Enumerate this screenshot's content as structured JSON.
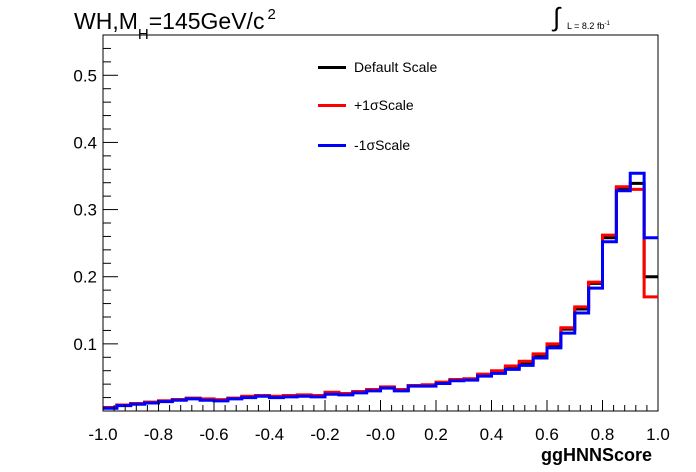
{
  "chart_data": {
    "type": "line",
    "title": {
      "main": "WH,M",
      "subscript": "H",
      "rest": "=145GeV/c",
      "superscript": "2"
    },
    "annotation": {
      "integral": "∫",
      "text": "L = 8.2 fb",
      "superscript": "-1"
    },
    "xlabel": "ggHNNScore",
    "ylabel": "",
    "xlim": [
      -1.0,
      1.0
    ],
    "ylim": [
      0.0,
      0.56
    ],
    "x_ticks": [
      "-1.0",
      "-0.8",
      "-0.6",
      "-0.4",
      "-0.2",
      "-0.0",
      "0.2",
      "0.4",
      "0.6",
      "0.8",
      "1.0"
    ],
    "y_ticks": [
      "0.1",
      "0.2",
      "0.3",
      "0.4",
      "0.5"
    ],
    "bin_edges": [
      -1.0,
      -0.95,
      -0.9,
      -0.85,
      -0.8,
      -0.75,
      -0.7,
      -0.65,
      -0.6,
      -0.55,
      -0.5,
      -0.45,
      -0.4,
      -0.35,
      -0.3,
      -0.25,
      -0.2,
      -0.15,
      -0.1,
      -0.05,
      0.0,
      0.05,
      0.1,
      0.15,
      0.2,
      0.25,
      0.3,
      0.35,
      0.4,
      0.45,
      0.5,
      0.55,
      0.6,
      0.65,
      0.7,
      0.75,
      0.8,
      0.85,
      0.9,
      0.95,
      1.0
    ],
    "series": [
      {
        "name": "Default Scale",
        "color": "#000000",
        "values": [
          0.005,
          0.009,
          0.011,
          0.013,
          0.015,
          0.017,
          0.019,
          0.017,
          0.016,
          0.019,
          0.021,
          0.023,
          0.021,
          0.022,
          0.023,
          0.022,
          0.027,
          0.025,
          0.028,
          0.031,
          0.035,
          0.031,
          0.038,
          0.038,
          0.042,
          0.046,
          0.047,
          0.054,
          0.058,
          0.065,
          0.072,
          0.083,
          0.098,
          0.122,
          0.152,
          0.19,
          0.258,
          0.332,
          0.339,
          0.2
        ]
      },
      {
        "name": "+1σScale",
        "color": "#ff0000",
        "values": [
          0.005,
          0.009,
          0.011,
          0.013,
          0.015,
          0.017,
          0.019,
          0.018,
          0.017,
          0.019,
          0.022,
          0.023,
          0.022,
          0.023,
          0.024,
          0.023,
          0.028,
          0.026,
          0.029,
          0.032,
          0.036,
          0.032,
          0.038,
          0.039,
          0.043,
          0.047,
          0.048,
          0.055,
          0.06,
          0.067,
          0.074,
          0.085,
          0.1,
          0.124,
          0.155,
          0.192,
          0.262,
          0.334,
          0.33,
          0.17
        ]
      },
      {
        "name": "-1σScale",
        "color": "#0000ff",
        "values": [
          0.004,
          0.008,
          0.01,
          0.012,
          0.014,
          0.016,
          0.018,
          0.016,
          0.015,
          0.018,
          0.02,
          0.022,
          0.02,
          0.021,
          0.022,
          0.021,
          0.025,
          0.024,
          0.027,
          0.03,
          0.034,
          0.03,
          0.037,
          0.037,
          0.041,
          0.045,
          0.046,
          0.052,
          0.056,
          0.062,
          0.068,
          0.079,
          0.094,
          0.116,
          0.146,
          0.183,
          0.252,
          0.328,
          0.354,
          0.258
        ]
      }
    ],
    "legend_position": "top-center",
    "grid": false
  }
}
